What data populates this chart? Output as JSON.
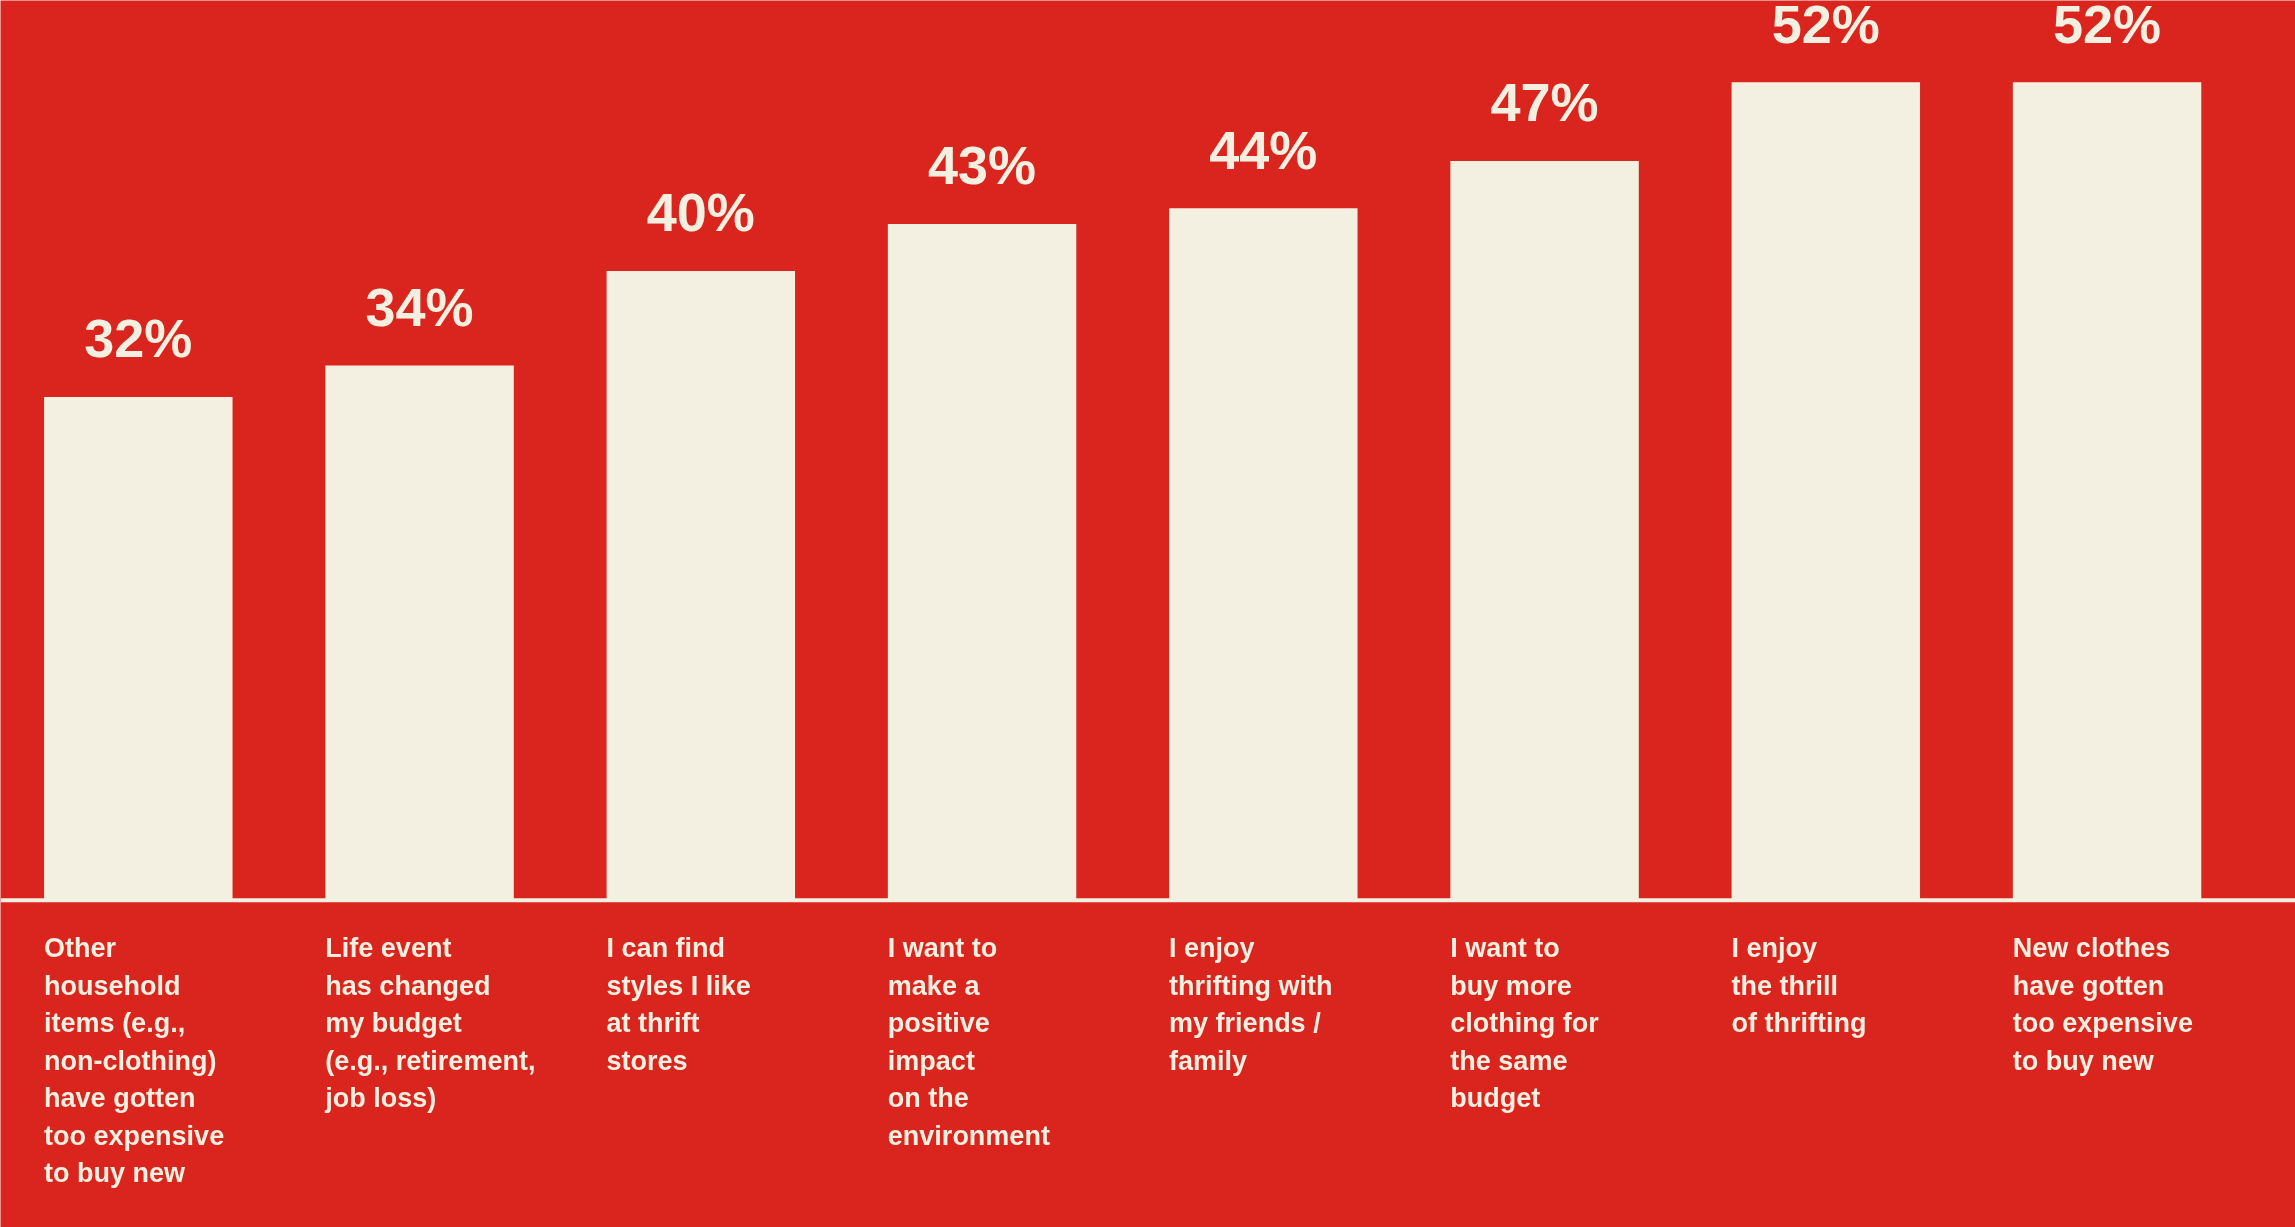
{
  "chart_data": {
    "type": "bar",
    "categories": [
      "Other\nhousehold\nitems (e.g.,\nnon-clothing)\nhave gotten\ntoo expensive\nto buy new",
      "Life event\nhas changed\nmy budget\n(e.g., retirement,\njob loss)",
      "I can find\nstyles I like\nat thrift\nstores",
      "I want to\nmake a\npositive\nimpact\non the\nenvironment",
      "I enjoy\nthrifting with\nmy friends /\nfamily",
      "I want to\nbuy more\nclothing for\nthe same\nbudget",
      "I enjoy\nthe thrill\nof thrifting",
      "New clothes\nhave gotten\ntoo expensive\nto buy new"
    ],
    "values": [
      32,
      34,
      40,
      43,
      44,
      47,
      52,
      52
    ],
    "value_labels": [
      "32%",
      "34%",
      "40%",
      "43%",
      "44%",
      "47%",
      "52%",
      "52%"
    ],
    "color": "#f3f0e1"
  }
}
